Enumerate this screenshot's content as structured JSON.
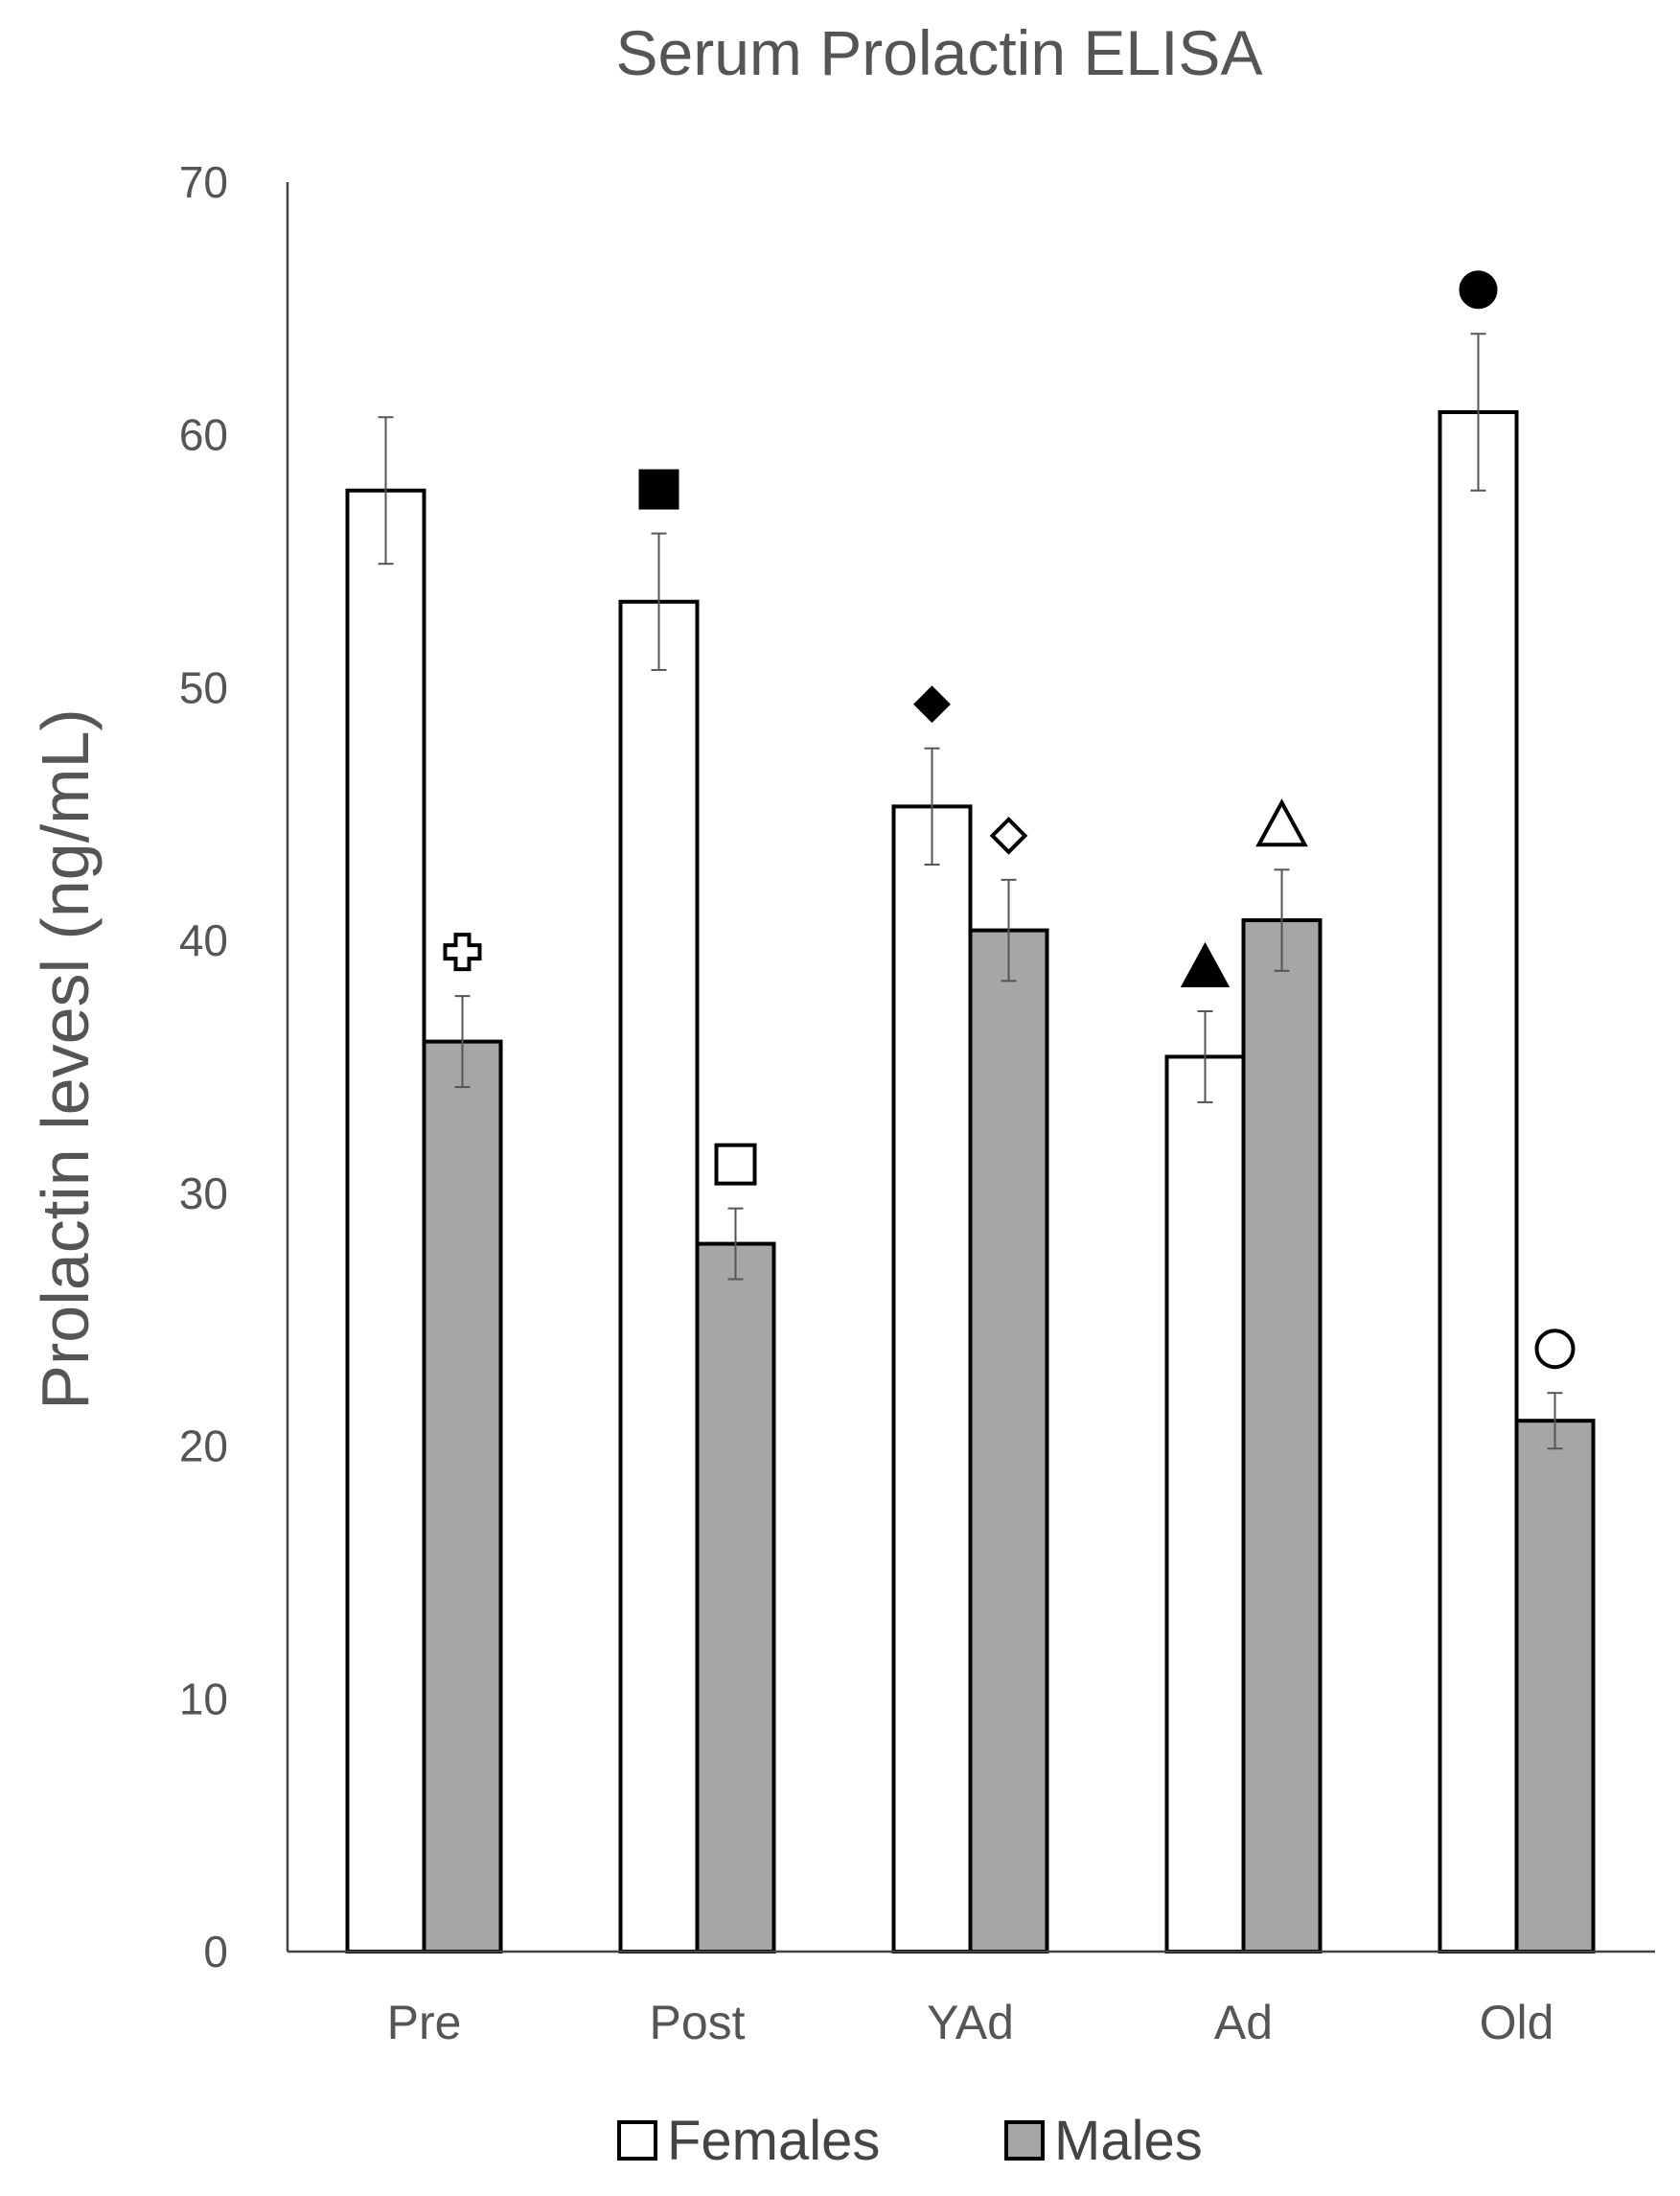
{
  "chart_data": {
    "type": "bar",
    "title": "Serum Prolactin ELISA",
    "xlabel": "",
    "ylabel": "Prolactin levesl (ng/mL)",
    "ylim": [
      0,
      70
    ],
    "yticks": [
      "0",
      "10",
      "20",
      "30",
      "40",
      "50",
      "60",
      "70"
    ],
    "grid": false,
    "legend_position": "bottom",
    "categories": [
      "Pre",
      "Post",
      "YAd",
      "Ad",
      "Old"
    ],
    "series": [
      {
        "name": "Females",
        "color": "#ffffff",
        "values": [
          57.8,
          53.4,
          45.3,
          35.4,
          60.9
        ],
        "error": [
          2.9,
          2.7,
          2.3,
          1.8,
          3.1
        ],
        "markers": [
          "none",
          "filled-square",
          "filled-diamond",
          "filled-triangle",
          "filled-circle"
        ]
      },
      {
        "name": "Males",
        "color": "#a6a6a6",
        "values": [
          36.0,
          28.0,
          40.4,
          40.8,
          21.0
        ],
        "error": [
          1.8,
          1.4,
          2.0,
          2.0,
          1.1
        ],
        "markers": [
          "open-cross",
          "open-square",
          "open-diamond",
          "open-triangle",
          "open-circle"
        ]
      }
    ]
  }
}
